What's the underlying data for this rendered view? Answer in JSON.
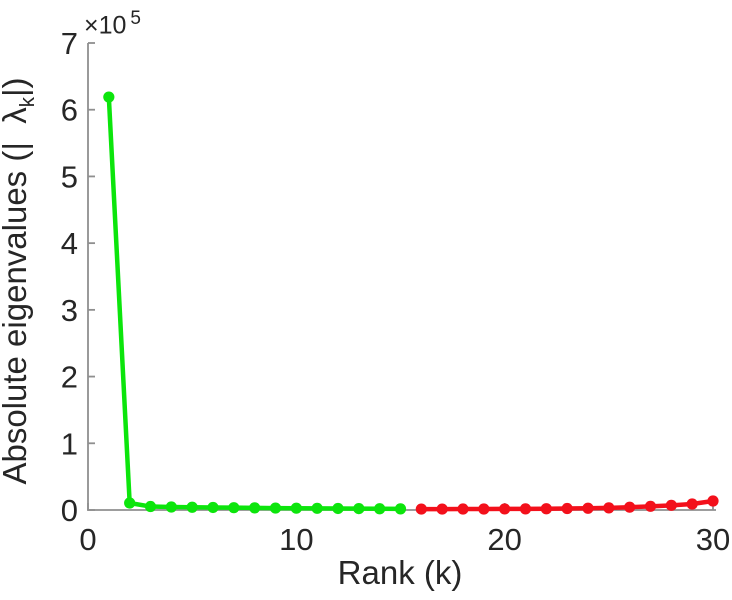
{
  "figure": {
    "xlabel": "Rank (k)",
    "ylabel_prefix": "Absolute eigenvalues (|  ",
    "ylabel_lambda": "λ",
    "ylabel_sub": "k",
    "ylabel_suffix": "|)",
    "exponent_mult": "×10",
    "exponent_power": "5"
  },
  "style": {
    "axis_color": "#8f8f8f",
    "tick_label_color": "#262626",
    "label_color": "#262626",
    "background": "#ffffff"
  },
  "chart_data": {
    "type": "line",
    "title": "",
    "xlabel": "Rank (k)",
    "ylabel": "Absolute eigenvalues (|λ_k|)",
    "y_axis_exponent": "×10^5",
    "xlim": [
      0,
      30.2
    ],
    "ylim": [
      0,
      700000
    ],
    "x_ticks": [
      0,
      10,
      20,
      30
    ],
    "x_tick_labels": [
      "0",
      "10",
      "20",
      "30"
    ],
    "y_ticks": [
      0,
      100000,
      200000,
      300000,
      400000,
      500000,
      600000,
      700000
    ],
    "y_tick_labels": [
      "0",
      "1",
      "2",
      "3",
      "4",
      "5",
      "6",
      "7"
    ],
    "grid": false,
    "legend": false,
    "marker": "filled-circle",
    "series": [
      {
        "name": "leading-eigenvalues-green",
        "color": "#0ce50c",
        "x": [
          1,
          2,
          3,
          4,
          5,
          6,
          7,
          8,
          9,
          10,
          11,
          12,
          13,
          14,
          15
        ],
        "values": [
          619000,
          10500,
          5200,
          4500,
          4100,
          3800,
          3500,
          3200,
          2900,
          2700,
          2500,
          2300,
          2100,
          1900,
          1700
        ]
      },
      {
        "name": "trailing-eigenvalues-red",
        "color": "#f3101b",
        "x": [
          16,
          17,
          18,
          19,
          20,
          21,
          22,
          23,
          24,
          25,
          26,
          27,
          28,
          29,
          30
        ],
        "values": [
          1400,
          1400,
          1450,
          1500,
          1600,
          1700,
          1900,
          2200,
          2600,
          3200,
          4200,
          5500,
          7000,
          9000,
          13500
        ]
      }
    ]
  }
}
